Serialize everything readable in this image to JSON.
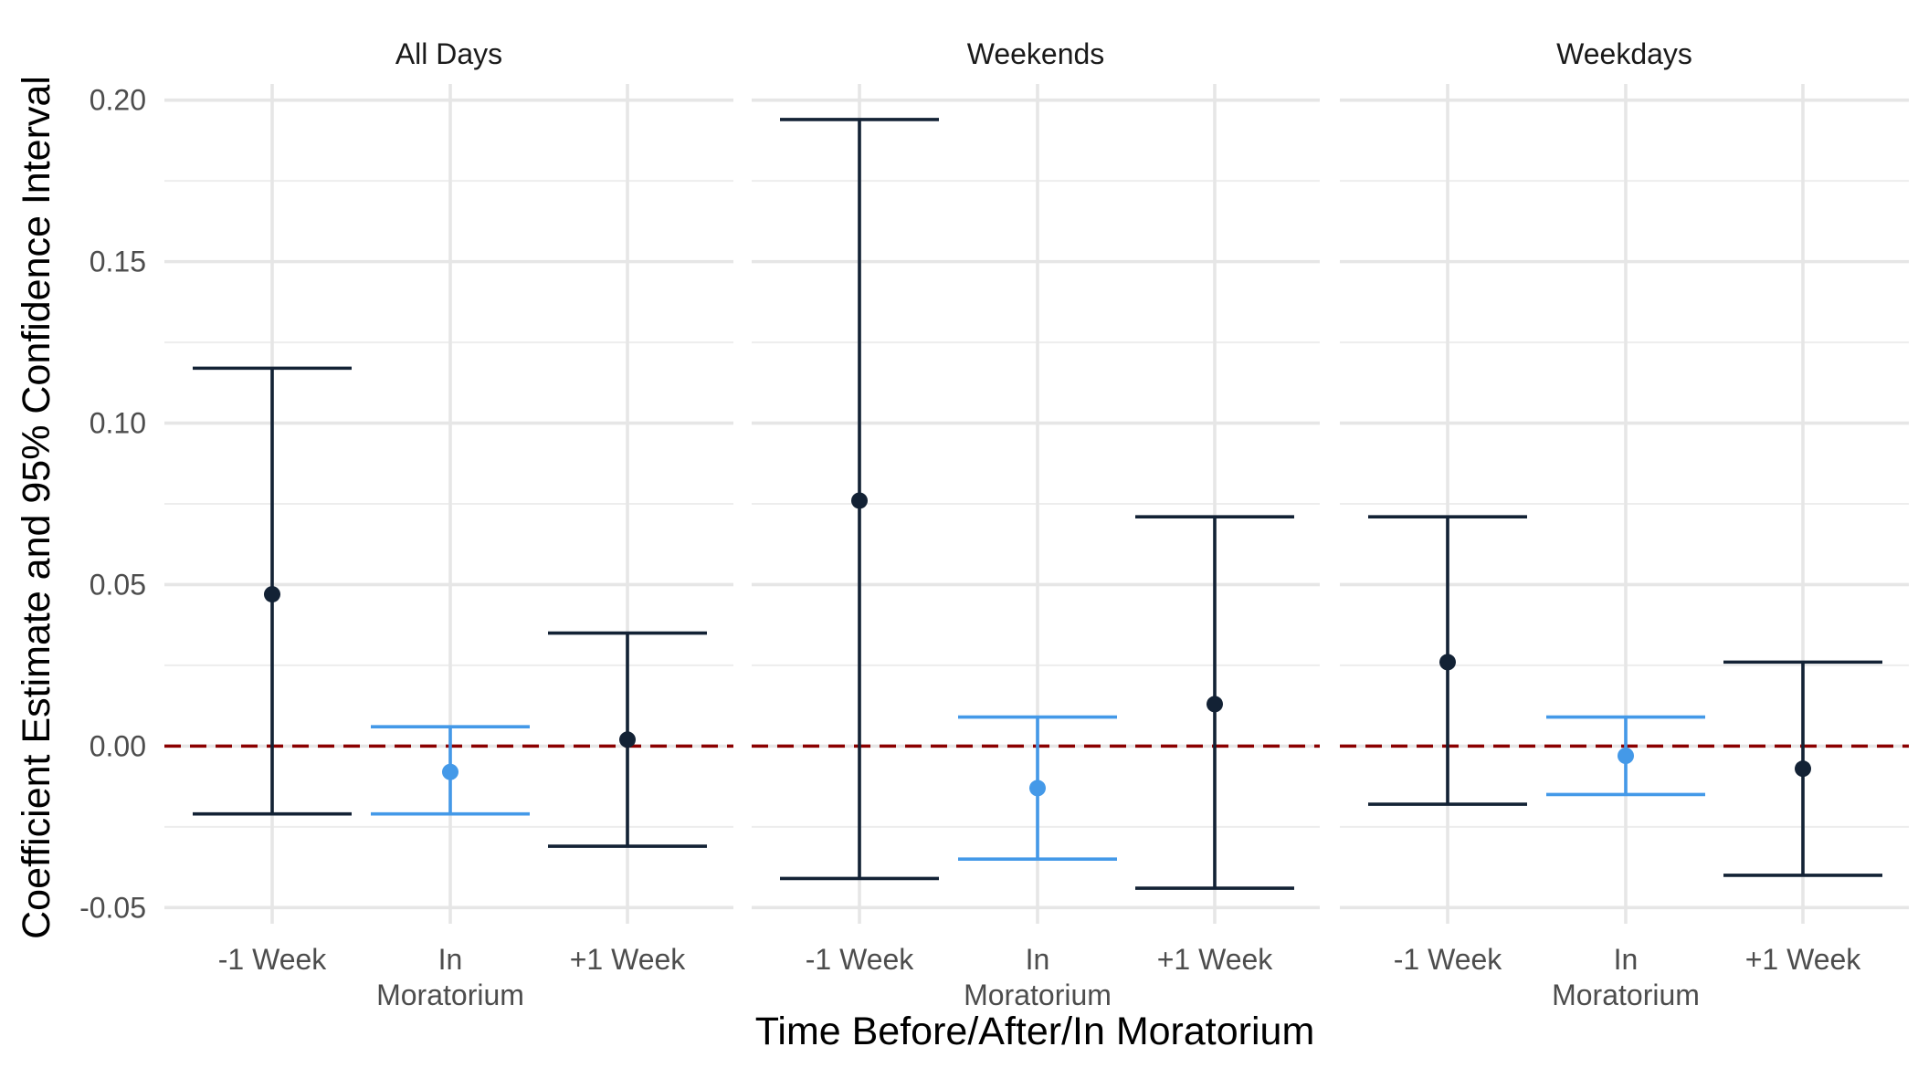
{
  "chart_data": {
    "type": "errorbar",
    "xlabel": "Time Before/After/In Moratorium",
    "ylabel": "Coefficient Estimate and 95% Confidence Interval",
    "ylim": [
      -0.055,
      0.205
    ],
    "yticks": [
      -0.05,
      0.0,
      0.05,
      0.1,
      0.15,
      0.2
    ],
    "ytick_labels": [
      "-0.05",
      "0.00",
      "0.05",
      "0.10",
      "0.15",
      "0.20"
    ],
    "categories": [
      {
        "key": "minus1",
        "lines": [
          "-1 Week"
        ]
      },
      {
        "key": "in",
        "lines": [
          "In",
          "Moratorium"
        ]
      },
      {
        "key": "plus1",
        "lines": [
          "+1 Week"
        ]
      }
    ],
    "reference_line": {
      "y": 0,
      "style": "dashed",
      "color": "#8b0000"
    },
    "colors": {
      "default": "#132235",
      "highlight": "#4499e8"
    },
    "grid": true,
    "legend": "none",
    "panels": [
      {
        "title": "All Days",
        "points": [
          {
            "category": "minus1",
            "estimate": 0.047,
            "lower": -0.021,
            "upper": 0.117,
            "highlight": false
          },
          {
            "category": "in",
            "estimate": -0.008,
            "lower": -0.021,
            "upper": 0.006,
            "highlight": true
          },
          {
            "category": "plus1",
            "estimate": 0.002,
            "lower": -0.031,
            "upper": 0.035,
            "highlight": false
          }
        ]
      },
      {
        "title": "Weekends",
        "points": [
          {
            "category": "minus1",
            "estimate": 0.076,
            "lower": -0.041,
            "upper": 0.194,
            "highlight": false
          },
          {
            "category": "in",
            "estimate": -0.013,
            "lower": -0.035,
            "upper": 0.009,
            "highlight": true
          },
          {
            "category": "plus1",
            "estimate": 0.013,
            "lower": -0.044,
            "upper": 0.071,
            "highlight": false
          }
        ]
      },
      {
        "title": "Weekdays",
        "points": [
          {
            "category": "minus1",
            "estimate": 0.026,
            "lower": -0.018,
            "upper": 0.071,
            "highlight": false
          },
          {
            "category": "in",
            "estimate": -0.003,
            "lower": -0.015,
            "upper": 0.009,
            "highlight": true
          },
          {
            "category": "plus1",
            "estimate": -0.007,
            "lower": -0.04,
            "upper": 0.026,
            "highlight": false
          }
        ]
      }
    ]
  }
}
